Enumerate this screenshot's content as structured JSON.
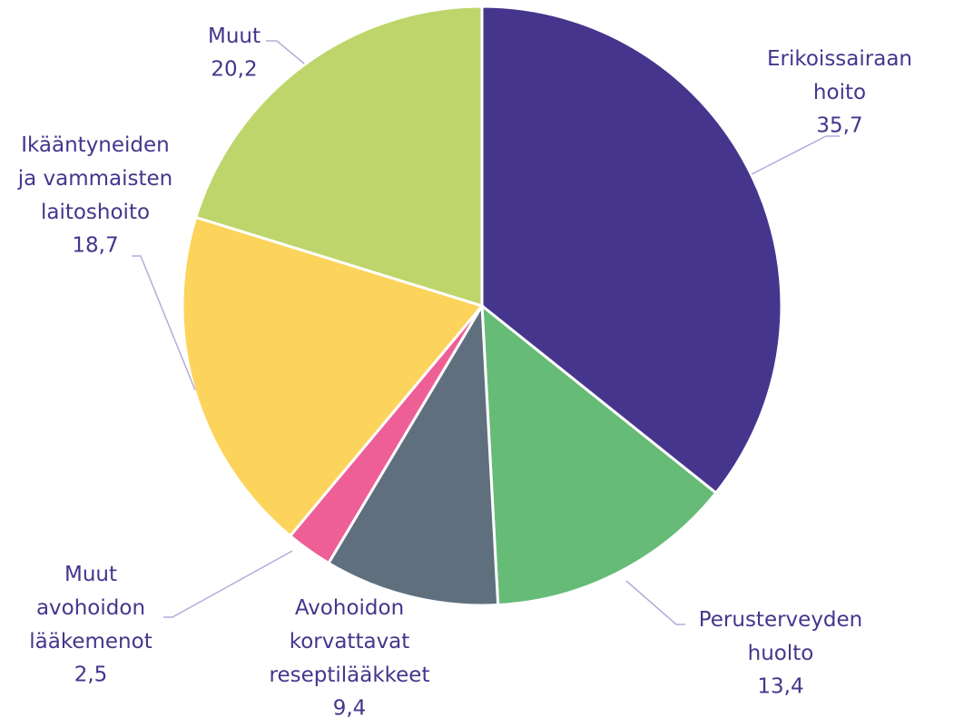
{
  "chart_data": {
    "type": "pie",
    "categories": [
      "Erikoissairaan\nhoito",
      "Perusterveyden\nhuolto",
      "Avohoidon\nkorvattavat\nreseptilääkkeet",
      "Muut\navohoidon\nlääkemenot",
      "Ikääntyneiden\nja vammaisten\nlaitoshoito",
      "Muut"
    ],
    "values": [
      35.7,
      13.4,
      9.4,
      2.5,
      18.7,
      20.2
    ],
    "value_labels": [
      "35,7",
      "13,4",
      "9,4",
      "2,5",
      "18,7",
      "20,2"
    ],
    "colors": [
      "#46358c",
      "#66bb77",
      "#5f6f7e",
      "#ee5f96",
      "#fcd45c",
      "#bed56b"
    ]
  }
}
